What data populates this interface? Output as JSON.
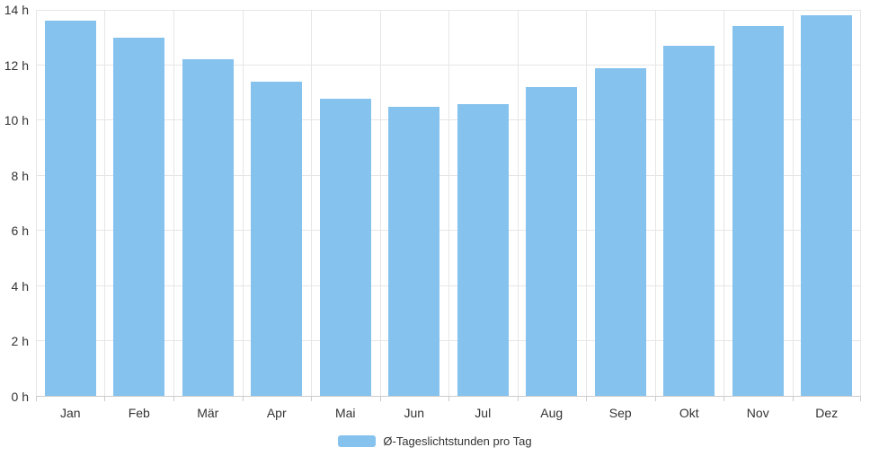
{
  "chart_data": {
    "type": "bar",
    "title": "",
    "categories": [
      "Jan",
      "Feb",
      "Mär",
      "Apr",
      "Mai",
      "Jun",
      "Jul",
      "Aug",
      "Sep",
      "Okt",
      "Nov",
      "Dez"
    ],
    "values": [
      13.6,
      13.0,
      12.2,
      11.4,
      10.8,
      10.5,
      10.6,
      11.2,
      11.9,
      12.7,
      13.4,
      13.8
    ],
    "series_name": "Ø-Tageslichtstunden pro Tag",
    "xlabel": "",
    "ylabel": "",
    "ylim": [
      0,
      14
    ],
    "ytick_step": 2,
    "ytick_labels": [
      "0 h",
      "2 h",
      "4 h",
      "6 h",
      "8 h",
      "10 h",
      "12 h",
      "14 h"
    ],
    "grid": true,
    "legend_position": "bottom-center"
  },
  "legend": {
    "label": "Ø-Tageslichtstunden pro Tag"
  },
  "colors": {
    "bar": "#85C2EE",
    "grid": "#E6E6E6",
    "axis_line": "#CCCCCC",
    "tick": "#CCCCCC",
    "text": "#333333"
  }
}
